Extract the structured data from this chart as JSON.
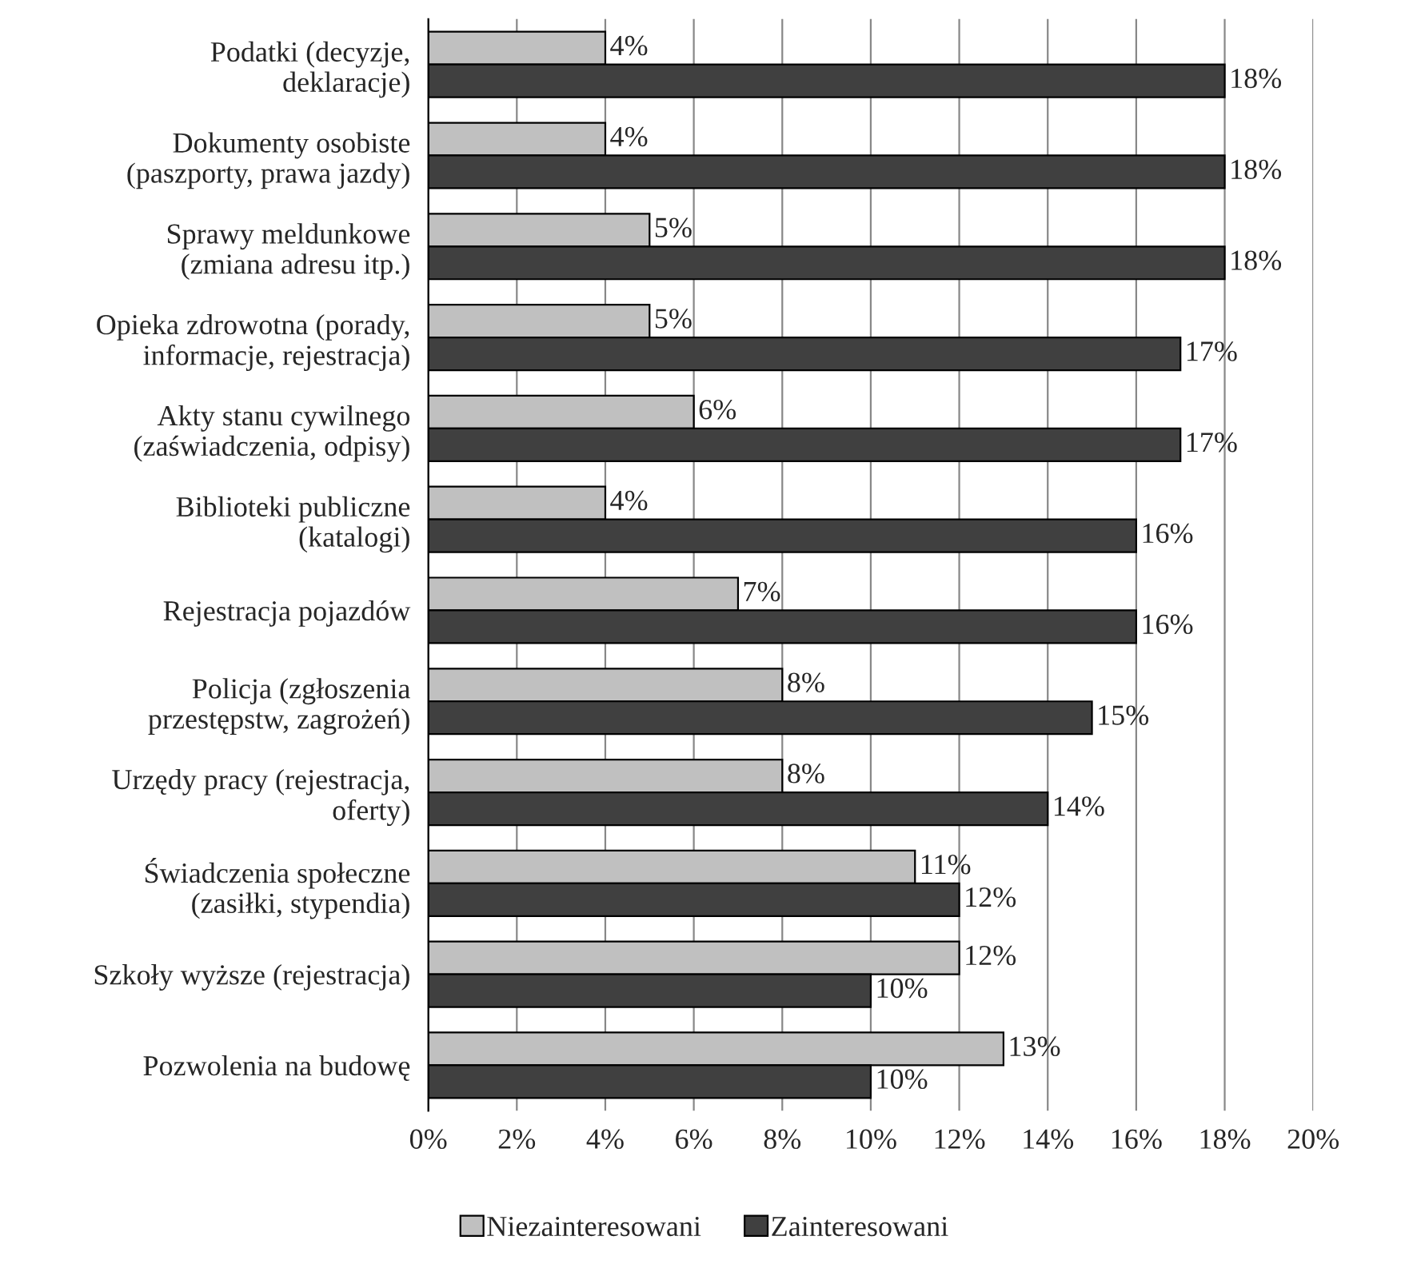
{
  "chart_data": {
    "type": "bar",
    "orientation": "horizontal",
    "categories": [
      "Podatki (decyzje,\ndeklaracje)",
      "Dokumenty osobiste\n(paszporty, prawa jazdy)",
      "Sprawy meldunkowe\n(zmiana adresu itp.)",
      "Opieka zdrowotna (porady,\ninformacje, rejestracja)",
      "Akty stanu cywilnego\n(zaświadczenia, odpisy)",
      "Biblioteki publiczne\n(katalogi)",
      "Rejestracja pojazdów",
      "Policja (zgłoszenia\nprzestępstw, zagrożeń)",
      "Urzędy pracy (rejestracja,\noferty)",
      "Świadczenia społeczne\n(zasiłki, stypendia)",
      "Szkoły wyższe (rejestracja)",
      "Pozwolenia na budowę"
    ],
    "series": [
      {
        "name": "Niezainteresowani",
        "color": "#c0c0c0",
        "values": [
          4,
          4,
          5,
          5,
          6,
          4,
          7,
          8,
          8,
          11,
          12,
          13
        ],
        "value_labels": [
          "4%",
          "4%",
          "5%",
          "5%",
          "6%",
          "4%",
          "7%",
          "8%",
          "8%",
          "11%",
          "12%",
          "13%"
        ]
      },
      {
        "name": "Zainteresowani",
        "color": "#404040",
        "values": [
          18,
          18,
          18,
          17,
          17,
          16,
          16,
          15,
          14,
          12,
          10,
          10
        ],
        "value_labels": [
          "18%",
          "18%",
          "18%",
          "17%",
          "17%",
          "16%",
          "16%",
          "15%",
          "14%",
          "12%",
          "10%",
          "10%"
        ]
      }
    ],
    "xlim": [
      0,
      20
    ],
    "xticks": [
      {
        "value": 0,
        "label": "0%"
      },
      {
        "value": 2,
        "label": "2%"
      },
      {
        "value": 4,
        "label": "4%"
      },
      {
        "value": 6,
        "label": "6%"
      },
      {
        "value": 8,
        "label": "8%"
      },
      {
        "value": 10,
        "label": "10%"
      },
      {
        "value": 12,
        "label": "12%"
      },
      {
        "value": 14,
        "label": "14%"
      },
      {
        "value": 16,
        "label": "16%"
      },
      {
        "value": 18,
        "label": "18%"
      },
      {
        "value": 20,
        "label": "20%"
      }
    ],
    "grid": "x",
    "legend": "bottom"
  }
}
